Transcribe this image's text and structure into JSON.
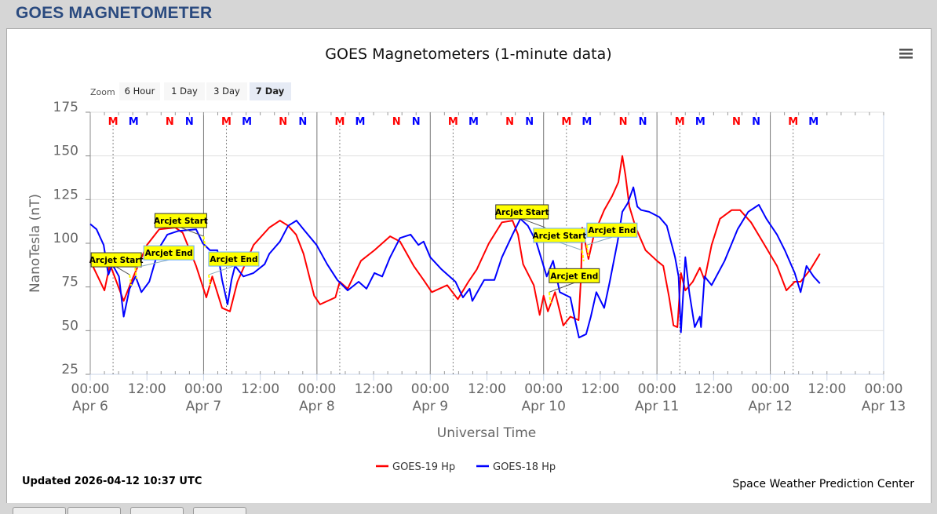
{
  "header": {
    "title": "GOES MAGNETOMETER"
  },
  "footer": {
    "updated": "Updated 2026-04-12 10:37 UTC",
    "credit": "Space Weather Prediction Center"
  },
  "zoom": {
    "label": "Zoom",
    "buttons": [
      "6 Hour",
      "1 Day",
      "3 Day",
      "7 Day"
    ],
    "selected": "7 Day"
  },
  "menu_icon": "hamburger-menu-icon",
  "colors": {
    "goes19": "#ff0000",
    "goes18": "#0000ff",
    "annotation_bg": "#ffff00",
    "title": "#2a4a7f"
  },
  "chart_data": {
    "type": "line",
    "title": "GOES Magnetometers (1-minute data)",
    "xlabel": "Universal Time",
    "ylabel": "NanoTesla (nT)",
    "ylim": [
      25,
      175
    ],
    "yticks": [
      "25",
      "50",
      "75",
      "100",
      "125",
      "150",
      "175"
    ],
    "xlim": [
      "2026-04-06T00:00",
      "2026-04-13T00:00"
    ],
    "xticks": [
      {
        "time": "2026-04-06T00:00",
        "l1": "00:00",
        "l2": "Apr 6"
      },
      {
        "time": "2026-04-06T12:00",
        "l1": "12:00",
        "l2": ""
      },
      {
        "time": "2026-04-07T00:00",
        "l1": "00:00",
        "l2": "Apr 7"
      },
      {
        "time": "2026-04-07T12:00",
        "l1": "12:00",
        "l2": ""
      },
      {
        "time": "2026-04-08T00:00",
        "l1": "00:00",
        "l2": "Apr 8"
      },
      {
        "time": "2026-04-08T12:00",
        "l1": "12:00",
        "l2": ""
      },
      {
        "time": "2026-04-09T00:00",
        "l1": "00:00",
        "l2": "Apr 9"
      },
      {
        "time": "2026-04-09T12:00",
        "l1": "12:00",
        "l2": ""
      },
      {
        "time": "2026-04-10T00:00",
        "l1": "00:00",
        "l2": "Apr 10"
      },
      {
        "time": "2026-04-10T12:00",
        "l1": "12:00",
        "l2": ""
      },
      {
        "time": "2026-04-11T00:00",
        "l1": "00:00",
        "l2": "Apr 11"
      },
      {
        "time": "2026-04-11T12:00",
        "l1": "12:00",
        "l2": ""
      },
      {
        "time": "2026-04-12T00:00",
        "l1": "00:00",
        "l2": "Apr 12"
      },
      {
        "time": "2026-04-12T12:00",
        "l1": "12:00",
        "l2": ""
      },
      {
        "time": "2026-04-13T00:00",
        "l1": "00:00",
        "l2": "Apr 13"
      }
    ],
    "grid": true,
    "legend": "bottom-center",
    "series": [
      {
        "name": "GOES-19 Hp",
        "color": "#ff0000",
        "points": [
          [
            "2026-04-06T00:00",
            90
          ],
          [
            "2026-04-06T03:00",
            73
          ],
          [
            "2026-04-06T04:10",
            88
          ],
          [
            "2026-04-06T07:05",
            67
          ],
          [
            "2026-04-06T08:50",
            79
          ],
          [
            "2026-04-06T12:00",
            99
          ],
          [
            "2026-04-06T14:35",
            108
          ],
          [
            "2026-04-06T18:00",
            109
          ],
          [
            "2026-04-06T19:35",
            106
          ],
          [
            "2026-04-06T22:25",
            87
          ],
          [
            "2026-04-07T00:35",
            69
          ],
          [
            "2026-04-07T01:50",
            81
          ],
          [
            "2026-04-07T03:55",
            63
          ],
          [
            "2026-04-07T05:35",
            61
          ],
          [
            "2026-04-07T07:10",
            78
          ],
          [
            "2026-04-07T10:35",
            99
          ],
          [
            "2026-04-07T13:55",
            109
          ],
          [
            "2026-04-07T16:10",
            113
          ],
          [
            "2026-04-07T17:55",
            110
          ],
          [
            "2026-04-07T19:35",
            105
          ],
          [
            "2026-04-07T21:10",
            94
          ],
          [
            "2026-04-07T23:25",
            70
          ],
          [
            "2026-04-08T00:40",
            65
          ],
          [
            "2026-04-08T03:55",
            69
          ],
          [
            "2026-04-08T04:50",
            78
          ],
          [
            "2026-04-08T06:30",
            74
          ],
          [
            "2026-04-08T09:20",
            90
          ],
          [
            "2026-04-08T12:10",
            96
          ],
          [
            "2026-04-08T15:30",
            104
          ],
          [
            "2026-04-08T17:35",
            101
          ],
          [
            "2026-04-08T20:30",
            87
          ],
          [
            "2026-04-08T22:35",
            79
          ],
          [
            "2026-04-09T00:20",
            72
          ],
          [
            "2026-04-09T03:35",
            76
          ],
          [
            "2026-04-09T05:50",
            68
          ],
          [
            "2026-04-09T08:05",
            78
          ],
          [
            "2026-04-09T09:50",
            85
          ],
          [
            "2026-04-09T12:25",
            100
          ],
          [
            "2026-04-09T15:10",
            112
          ],
          [
            "2026-04-09T17:25",
            113
          ],
          [
            "2026-04-09T18:35",
            105
          ],
          [
            "2026-04-09T19:40",
            88
          ],
          [
            "2026-04-09T21:55",
            76
          ],
          [
            "2026-04-09T23:10",
            59
          ],
          [
            "2026-04-10T00:00",
            70
          ],
          [
            "2026-04-10T00:55",
            61
          ],
          [
            "2026-04-10T02:25",
            72
          ],
          [
            "2026-04-10T04:10",
            53
          ],
          [
            "2026-04-10T05:40",
            58
          ],
          [
            "2026-04-10T07:25",
            56
          ],
          [
            "2026-04-10T07:55",
            81
          ],
          [
            "2026-04-10T08:10",
            109
          ],
          [
            "2026-04-10T09:30",
            91
          ],
          [
            "2026-04-10T10:40",
            105
          ],
          [
            "2026-04-10T12:50",
            119
          ],
          [
            "2026-04-10T14:30",
            127
          ],
          [
            "2026-04-10T15:50",
            135
          ],
          [
            "2026-04-10T16:40",
            150
          ],
          [
            "2026-04-10T17:20",
            139
          ],
          [
            "2026-04-10T18:10",
            121
          ],
          [
            "2026-04-10T19:30",
            109
          ],
          [
            "2026-04-10T21:35",
            96
          ],
          [
            "2026-04-11T00:00",
            90
          ],
          [
            "2026-04-11T01:20",
            87
          ],
          [
            "2026-04-11T02:35",
            69
          ],
          [
            "2026-04-11T03:30",
            53
          ],
          [
            "2026-04-11T04:20",
            52
          ],
          [
            "2026-04-11T05:05",
            83
          ],
          [
            "2026-04-11T06:00",
            73
          ],
          [
            "2026-04-11T07:35",
            78
          ],
          [
            "2026-04-11T09:05",
            86
          ],
          [
            "2026-04-11T10:05",
            79
          ],
          [
            "2026-04-11T11:35",
            99
          ],
          [
            "2026-04-11T13:20",
            114
          ],
          [
            "2026-04-11T15:50",
            119
          ],
          [
            "2026-04-11T17:35",
            119
          ],
          [
            "2026-04-11T19:55",
            112
          ],
          [
            "2026-04-11T22:35",
            100
          ],
          [
            "2026-04-12T01:25",
            87
          ],
          [
            "2026-04-12T03:25",
            73
          ],
          [
            "2026-04-12T05:10",
            78
          ],
          [
            "2026-04-12T06:25",
            78
          ],
          [
            "2026-04-12T08:30",
            85
          ],
          [
            "2026-04-12T10:30",
            94
          ]
        ]
      },
      {
        "name": "GOES-18 Hp",
        "color": "#0000ff",
        "points": [
          [
            "2026-04-06T00:00",
            111
          ],
          [
            "2026-04-06T01:20",
            108
          ],
          [
            "2026-04-06T02:50",
            99
          ],
          [
            "2026-04-06T03:50",
            82
          ],
          [
            "2026-04-06T04:40",
            88
          ],
          [
            "2026-04-06T06:05",
            81
          ],
          [
            "2026-04-06T07:05",
            58
          ],
          [
            "2026-04-06T08:20",
            74
          ],
          [
            "2026-04-06T09:35",
            81
          ],
          [
            "2026-04-06T10:50",
            72
          ],
          [
            "2026-04-06T12:30",
            78
          ],
          [
            "2026-04-06T13:35",
            88
          ],
          [
            "2026-04-06T14:30",
            97
          ],
          [
            "2026-04-06T16:20",
            105
          ],
          [
            "2026-04-06T18:35",
            107
          ],
          [
            "2026-04-06T22:25",
            108
          ],
          [
            "2026-04-06T23:50",
            100
          ],
          [
            "2026-04-07T01:20",
            96
          ],
          [
            "2026-04-07T02:55",
            96
          ],
          [
            "2026-04-07T03:55",
            79
          ],
          [
            "2026-04-07T05:05",
            65
          ],
          [
            "2026-04-07T05:55",
            79
          ],
          [
            "2026-04-07T06:40",
            87
          ],
          [
            "2026-04-07T08:25",
            81
          ],
          [
            "2026-04-07T10:35",
            83
          ],
          [
            "2026-04-07T12:55",
            88
          ],
          [
            "2026-04-07T13:55",
            94
          ],
          [
            "2026-04-07T16:10",
            101
          ],
          [
            "2026-04-07T17:55",
            110
          ],
          [
            "2026-04-07T19:40",
            113
          ],
          [
            "2026-04-07T21:10",
            108
          ],
          [
            "2026-04-07T23:55",
            99
          ],
          [
            "2026-04-08T02:10",
            88
          ],
          [
            "2026-04-08T04:20",
            79
          ],
          [
            "2026-04-08T06:30",
            73
          ],
          [
            "2026-04-08T08:50",
            78
          ],
          [
            "2026-04-08T10:30",
            74
          ],
          [
            "2026-04-08T12:10",
            83
          ],
          [
            "2026-04-08T13:50",
            81
          ],
          [
            "2026-04-08T15:30",
            92
          ],
          [
            "2026-04-08T17:35",
            103
          ],
          [
            "2026-04-08T19:50",
            105
          ],
          [
            "2026-04-08T21:30",
            99
          ],
          [
            "2026-04-08T22:35",
            101
          ],
          [
            "2026-04-09T00:00",
            92
          ],
          [
            "2026-04-09T02:25",
            85
          ],
          [
            "2026-04-09T05:20",
            78
          ],
          [
            "2026-04-09T06:55",
            69
          ],
          [
            "2026-04-09T08:20",
            74
          ],
          [
            "2026-04-09T08:55",
            67
          ],
          [
            "2026-04-09T11:25",
            79
          ],
          [
            "2026-04-09T13:35",
            79
          ],
          [
            "2026-04-09T15:10",
            92
          ],
          [
            "2026-04-09T17:25",
            105
          ],
          [
            "2026-04-09T19:05",
            114
          ],
          [
            "2026-04-09T20:40",
            110
          ],
          [
            "2026-04-09T22:25",
            101
          ],
          [
            "2026-04-10T00:40",
            81
          ],
          [
            "2026-04-10T02:00",
            90
          ],
          [
            "2026-04-10T03:25",
            72
          ],
          [
            "2026-04-10T05:40",
            69
          ],
          [
            "2026-04-10T06:40",
            56
          ],
          [
            "2026-04-10T07:30",
            46
          ],
          [
            "2026-04-10T09:00",
            48
          ],
          [
            "2026-04-10T10:00",
            58
          ],
          [
            "2026-04-10T11:10",
            72
          ],
          [
            "2026-04-10T12:50",
            63
          ],
          [
            "2026-04-10T14:00",
            78
          ],
          [
            "2026-04-10T15:40",
            101
          ],
          [
            "2026-04-10T16:40",
            118
          ],
          [
            "2026-04-10T17:50",
            123
          ],
          [
            "2026-04-10T19:00",
            132
          ],
          [
            "2026-04-10T19:50",
            121
          ],
          [
            "2026-04-10T20:40",
            119
          ],
          [
            "2026-04-10T22:20",
            118
          ],
          [
            "2026-04-11T00:30",
            115
          ],
          [
            "2026-04-11T02:05",
            110
          ],
          [
            "2026-04-11T03:50",
            92
          ],
          [
            "2026-04-11T04:35",
            81
          ],
          [
            "2026-04-11T05:05",
            49
          ],
          [
            "2026-04-11T06:00",
            92
          ],
          [
            "2026-04-11T06:50",
            72
          ],
          [
            "2026-04-11T08:00",
            52
          ],
          [
            "2026-04-11T09:05",
            58
          ],
          [
            "2026-04-11T09:20",
            52
          ],
          [
            "2026-04-11T10:05",
            81
          ],
          [
            "2026-04-11T11:35",
            76
          ],
          [
            "2026-04-11T14:20",
            90
          ],
          [
            "2026-04-11T17:05",
            108
          ],
          [
            "2026-04-11T19:20",
            118
          ],
          [
            "2026-04-11T21:35",
            122
          ],
          [
            "2026-04-11T23:10",
            114
          ],
          [
            "2026-04-12T01:25",
            105
          ],
          [
            "2026-04-12T03:05",
            96
          ],
          [
            "2026-04-12T05:10",
            83
          ],
          [
            "2026-04-12T06:25",
            72
          ],
          [
            "2026-04-12T07:40",
            87
          ],
          [
            "2026-04-12T09:10",
            81
          ],
          [
            "2026-04-12T10:30",
            77
          ]
        ]
      }
    ],
    "markers": [
      {
        "label": "M",
        "color": "#ff0000",
        "times": [
          "2026-04-06T04:50",
          "2026-04-07T04:50",
          "2026-04-08T04:50",
          "2026-04-09T04:50",
          "2026-04-10T04:50",
          "2026-04-11T04:50",
          "2026-04-12T04:50"
        ]
      },
      {
        "label": "M",
        "color": "#0000ff",
        "times": [
          "2026-04-06T09:10",
          "2026-04-07T09:10",
          "2026-04-08T09:10",
          "2026-04-09T09:10",
          "2026-04-10T09:10",
          "2026-04-11T09:10",
          "2026-04-12T09:10"
        ]
      },
      {
        "label": "N",
        "color": "#ff0000",
        "times": [
          "2026-04-06T16:50",
          "2026-04-07T16:50",
          "2026-04-08T16:50",
          "2026-04-09T16:50",
          "2026-04-10T16:50",
          "2026-04-11T16:50"
        ]
      },
      {
        "label": "N",
        "color": "#0000ff",
        "times": [
          "2026-04-06T21:00",
          "2026-04-07T21:00",
          "2026-04-08T21:00",
          "2026-04-09T21:00",
          "2026-04-10T21:00",
          "2026-04-11T21:00"
        ]
      }
    ],
    "annotations": [
      {
        "label": "Arcjet Start",
        "time": "2026-04-06T08:20",
        "value": 82
      },
      {
        "label": "Arcjet End",
        "time": "2026-04-06T09:30",
        "value": 86
      },
      {
        "label": "Arcjet Start",
        "time": "2026-04-07T00:00",
        "value": 104
      },
      {
        "label": "Arcjet End",
        "time": "2026-04-07T01:05",
        "value": 82
      },
      {
        "label": "Arcjet Start",
        "time": "2026-04-10T00:20",
        "value": 109
      },
      {
        "label": "Arcjet Start",
        "time": "2026-04-10T08:10",
        "value": 96
      },
      {
        "label": "Arcjet End",
        "time": "2026-04-10T01:10",
        "value": 72
      },
      {
        "label": "Arcjet End",
        "time": "2026-04-10T09:10",
        "value": 99
      }
    ]
  }
}
